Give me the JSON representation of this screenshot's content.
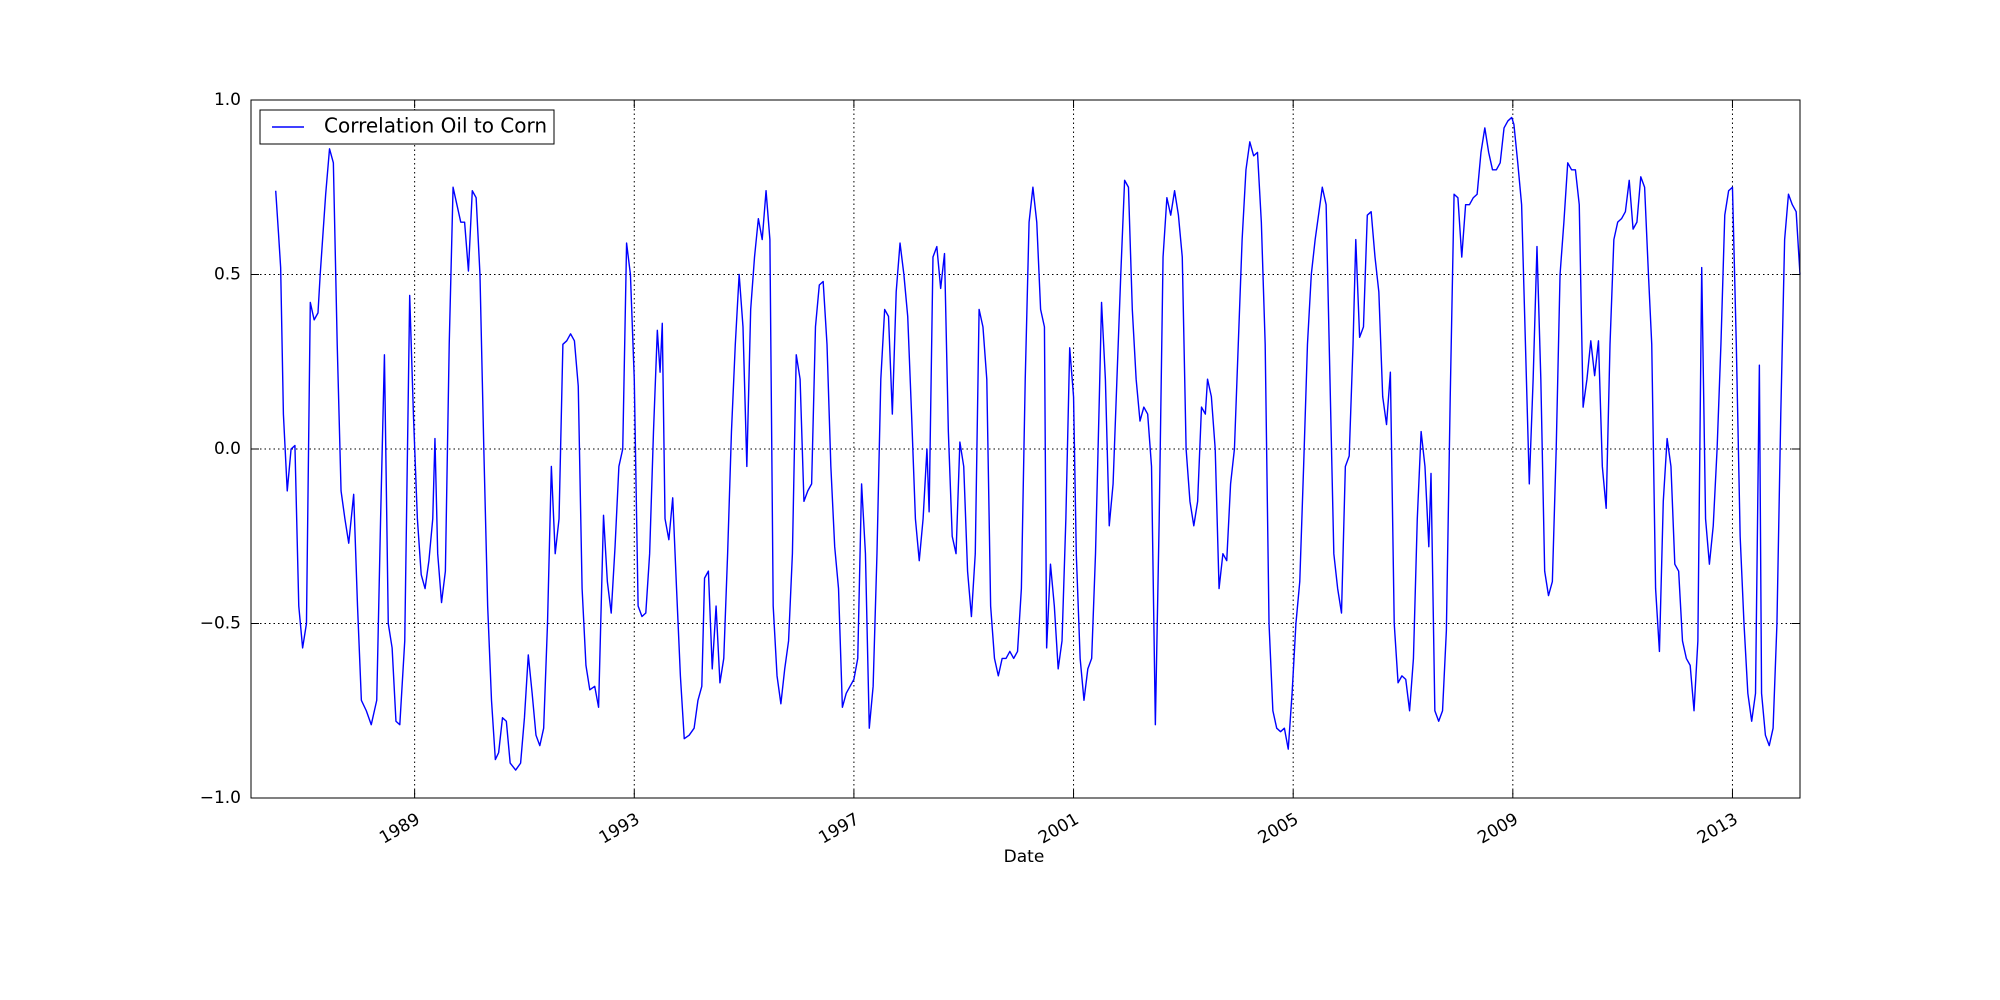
{
  "chart_data": {
    "type": "line",
    "xlabel": "Date",
    "legend": "upper left",
    "grid": true,
    "xlim": [
      1986.02,
      2014.23
    ],
    "xticks": [
      1989,
      1993,
      1997,
      2001,
      2005,
      2009,
      2013
    ],
    "ylim": [
      -1,
      1
    ],
    "yticks": [
      {
        "value": 1.0,
        "label": "1.0"
      },
      {
        "value": 0.5,
        "label": "0.5"
      },
      {
        "value": 0.0,
        "label": "0.0"
      },
      {
        "value": -0.5,
        "label": "−0.5"
      },
      {
        "value": -1.0,
        "label": "−1.0"
      }
    ],
    "x": [
      1986.47,
      1986.52,
      1986.56,
      1986.61,
      1986.68,
      1986.75,
      1986.82,
      1986.89,
      1986.96,
      1987.03,
      1987.1,
      1987.17,
      1987.24,
      1987.28,
      1987.38,
      1987.45,
      1987.52,
      1987.59,
      1987.66,
      1987.73,
      1987.8,
      1987.89,
      1987.96,
      1988.03,
      1988.12,
      1988.21,
      1988.31,
      1988.38,
      1988.45,
      1988.52,
      1988.59,
      1988.66,
      1988.73,
      1988.82,
      1988.91,
      1988.98,
      1989.05,
      1989.12,
      1989.19,
      1989.26,
      1989.33,
      1989.37,
      1989.42,
      1989.49,
      1989.56,
      1989.63,
      1989.7,
      1989.77,
      1989.84,
      1989.91,
      1989.98,
      1990.05,
      1990.12,
      1990.19,
      1990.26,
      1990.33,
      1990.4,
      1990.47,
      1990.53,
      1990.6,
      1990.67,
      1990.74,
      1990.84,
      1990.93,
      1991.0,
      1991.07,
      1991.14,
      1991.21,
      1991.28,
      1991.35,
      1991.42,
      1991.49,
      1991.56,
      1991.63,
      1991.7,
      1991.77,
      1991.84,
      1991.91,
      1991.98,
      1992.05,
      1992.12,
      1992.19,
      1992.28,
      1992.35,
      1992.44,
      1992.51,
      1992.58,
      1992.65,
      1992.72,
      1992.79,
      1992.86,
      1992.93,
      1993.0,
      1993.07,
      1993.14,
      1993.21,
      1993.28,
      1993.35,
      1993.42,
      1993.47,
      1993.51,
      1993.56,
      1993.63,
      1993.7,
      1993.77,
      1993.84,
      1993.91,
      1994.0,
      1994.09,
      1994.16,
      1994.23,
      1994.28,
      1994.35,
      1994.42,
      1994.49,
      1994.56,
      1994.63,
      1994.7,
      1994.77,
      1994.84,
      1994.91,
      1994.98,
      1995.05,
      1995.12,
      1995.19,
      1995.26,
      1995.33,
      1995.4,
      1995.47,
      1995.53,
      1995.6,
      1995.67,
      1995.74,
      1995.81,
      1995.88,
      1995.95,
      1996.02,
      1996.09,
      1996.16,
      1996.23,
      1996.3,
      1996.37,
      1996.44,
      1996.51,
      1996.58,
      1996.65,
      1996.72,
      1996.79,
      1996.86,
      1996.93,
      1997.0,
      1997.07,
      1997.14,
      1997.21,
      1997.28,
      1997.35,
      1997.42,
      1997.49,
      1997.56,
      1997.63,
      1997.7,
      1997.77,
      1997.84,
      1997.91,
      1997.98,
      1998.05,
      1998.12,
      1998.19,
      1998.26,
      1998.33,
      1998.37,
      1998.44,
      1998.51,
      1998.58,
      1998.65,
      1998.72,
      1998.79,
      1998.86,
      1998.93,
      1999.0,
      1999.07,
      1999.14,
      1999.21,
      1999.28,
      1999.35,
      1999.42,
      1999.49,
      1999.56,
      1999.63,
      1999.7,
      1999.77,
      1999.84,
      1999.91,
      1999.98,
      2000.05,
      2000.12,
      2000.19,
      2000.26,
      2000.33,
      2000.4,
      2000.47,
      2000.51,
      2000.58,
      2000.65,
      2000.72,
      2000.79,
      2000.86,
      2000.93,
      2001.0,
      2001.05,
      2001.12,
      2001.19,
      2001.26,
      2001.33,
      2001.4,
      2001.47,
      2001.51,
      2001.58,
      2001.65,
      2001.72,
      2001.79,
      2001.86,
      2001.93,
      2002.0,
      2002.07,
      2002.14,
      2002.21,
      2002.28,
      2002.35,
      2002.42,
      2002.49,
      2002.56,
      2002.63,
      2002.7,
      2002.77,
      2002.84,
      2002.91,
      2002.98,
      2003.05,
      2003.12,
      2003.19,
      2003.26,
      2003.33,
      2003.4,
      2003.44,
      2003.51,
      2003.58,
      2003.65,
      2003.72,
      2003.79,
      2003.86,
      2003.93,
      2004.0,
      2004.07,
      2004.14,
      2004.21,
      2004.28,
      2004.35,
      2004.42,
      2004.49,
      2004.56,
      2004.63,
      2004.7,
      2004.77,
      2004.84,
      2004.91,
      2004.98,
      2005.05,
      2005.12,
      2005.19,
      2005.26,
      2005.33,
      2005.4,
      2005.47,
      2005.53,
      2005.6,
      2005.67,
      2005.74,
      2005.81,
      2005.88,
      2005.95,
      2006.02,
      2006.09,
      2006.14,
      2006.21,
      2006.28,
      2006.35,
      2006.42,
      2006.49,
      2006.56,
      2006.63,
      2006.7,
      2006.77,
      2006.84,
      2006.91,
      2006.98,
      2007.05,
      2007.12,
      2007.19,
      2007.26,
      2007.33,
      2007.4,
      2007.47,
      2007.51,
      2007.58,
      2007.65,
      2007.72,
      2007.79,
      2007.86,
      2007.93,
      2008.0,
      2008.07,
      2008.14,
      2008.21,
      2008.28,
      2008.35,
      2008.42,
      2008.49,
      2008.56,
      2008.63,
      2008.7,
      2008.77,
      2008.84,
      2008.91,
      2008.98,
      2009.02,
      2009.09,
      2009.16,
      2009.23,
      2009.3,
      2009.37,
      2009.44,
      2009.51,
      2009.58,
      2009.65,
      2009.72,
      2009.79,
      2009.86,
      2009.93,
      2010.0,
      2010.07,
      2010.14,
      2010.21,
      2010.28,
      2010.35,
      2010.42,
      2010.49,
      2010.56,
      2010.63,
      2010.7,
      2010.77,
      2010.84,
      2010.91,
      2010.98,
      2011.05,
      2011.12,
      2011.19,
      2011.26,
      2011.33,
      2011.4,
      2011.47,
      2011.53,
      2011.6,
      2011.67,
      2011.74,
      2011.81,
      2011.88,
      2011.95,
      2012.02,
      2012.09,
      2012.16,
      2012.23,
      2012.3,
      2012.37,
      2012.44,
      2012.51,
      2012.58,
      2012.65,
      2012.72,
      2012.79,
      2012.86,
      2012.93,
      2013.0,
      2013.07,
      2013.14,
      2013.21,
      2013.28,
      2013.35,
      2013.42,
      2013.49,
      2013.53,
      2013.6,
      2013.67,
      2013.74,
      2013.81,
      2013.88,
      2013.95,
      2014.02,
      2014.09,
      2014.16,
      2014.23
    ],
    "series": [
      {
        "name": "Correlation Oil to Corn",
        "color": "#0000ff",
        "values": [
          0.74,
          0.62,
          0.52,
          0.1,
          -0.12,
          0.0,
          0.01,
          -0.45,
          -0.57,
          -0.5,
          0.42,
          0.37,
          0.39,
          0.5,
          0.73,
          0.86,
          0.82,
          0.3,
          -0.12,
          -0.2,
          -0.27,
          -0.13,
          -0.45,
          -0.72,
          -0.75,
          -0.79,
          -0.72,
          -0.2,
          0.27,
          -0.5,
          -0.57,
          -0.78,
          -0.79,
          -0.55,
          0.44,
          0.09,
          -0.2,
          -0.36,
          -0.4,
          -0.32,
          -0.2,
          0.03,
          -0.3,
          -0.44,
          -0.35,
          0.3,
          0.75,
          0.7,
          0.65,
          0.65,
          0.51,
          0.74,
          0.72,
          0.5,
          0.0,
          -0.45,
          -0.72,
          -0.89,
          -0.87,
          -0.77,
          -0.78,
          -0.9,
          -0.92,
          -0.9,
          -0.77,
          -0.59,
          -0.7,
          -0.82,
          -0.85,
          -0.8,
          -0.5,
          -0.05,
          -0.3,
          -0.2,
          0.3,
          0.31,
          0.33,
          0.31,
          0.18,
          -0.4,
          -0.62,
          -0.69,
          -0.68,
          -0.74,
          -0.19,
          -0.38,
          -0.47,
          -0.28,
          -0.05,
          0.0,
          0.59,
          0.5,
          0.2,
          -0.45,
          -0.48,
          -0.47,
          -0.3,
          0.05,
          0.34,
          0.22,
          0.36,
          -0.2,
          -0.26,
          -0.14,
          -0.4,
          -0.65,
          -0.83,
          -0.82,
          -0.8,
          -0.72,
          -0.68,
          -0.37,
          -0.35,
          -0.63,
          -0.45,
          -0.67,
          -0.6,
          -0.3,
          0.05,
          0.3,
          0.5,
          0.35,
          -0.05,
          0.4,
          0.55,
          0.66,
          0.6,
          0.74,
          0.6,
          -0.45,
          -0.65,
          -0.73,
          -0.63,
          -0.55,
          -0.3,
          0.27,
          0.2,
          -0.15,
          -0.12,
          -0.1,
          0.35,
          0.47,
          0.48,
          0.3,
          -0.05,
          -0.28,
          -0.4,
          -0.74,
          -0.7,
          -0.68,
          -0.66,
          -0.6,
          -0.1,
          -0.3,
          -0.8,
          -0.68,
          -0.3,
          0.2,
          0.4,
          0.38,
          0.1,
          0.45,
          0.59,
          0.5,
          0.38,
          0.1,
          -0.2,
          -0.32,
          -0.2,
          0.0,
          -0.18,
          0.55,
          0.58,
          0.46,
          0.56,
          0.05,
          -0.25,
          -0.3,
          0.02,
          -0.05,
          -0.35,
          -0.48,
          -0.3,
          0.4,
          0.35,
          0.2,
          -0.45,
          -0.6,
          -0.65,
          -0.6,
          -0.6,
          -0.58,
          -0.6,
          -0.58,
          -0.4,
          0.2,
          0.65,
          0.75,
          0.65,
          0.4,
          0.35,
          -0.57,
          -0.33,
          -0.45,
          -0.63,
          -0.55,
          -0.2,
          0.29,
          0.15,
          -0.3,
          -0.6,
          -0.72,
          -0.63,
          -0.6,
          -0.3,
          0.15,
          0.42,
          0.2,
          -0.22,
          -0.1,
          0.2,
          0.5,
          0.77,
          0.75,
          0.4,
          0.2,
          0.08,
          0.12,
          0.1,
          -0.05,
          -0.79,
          -0.2,
          0.55,
          0.72,
          0.67,
          0.74,
          0.67,
          0.55,
          0.0,
          -0.15,
          -0.22,
          -0.15,
          0.12,
          0.1,
          0.2,
          0.15,
          0.0,
          -0.4,
          -0.3,
          -0.32,
          -0.1,
          0.0,
          0.3,
          0.6,
          0.8,
          0.88,
          0.84,
          0.85,
          0.65,
          0.3,
          -0.5,
          -0.75,
          -0.8,
          -0.81,
          -0.8,
          -0.86,
          -0.7,
          -0.5,
          -0.38,
          -0.05,
          0.3,
          0.5,
          0.6,
          0.68,
          0.75,
          0.7,
          0.2,
          -0.3,
          -0.4,
          -0.47,
          -0.05,
          -0.02,
          0.3,
          0.6,
          0.32,
          0.35,
          0.67,
          0.68,
          0.55,
          0.45,
          0.15,
          0.07,
          0.22,
          -0.5,
          -0.67,
          -0.65,
          -0.66,
          -0.75,
          -0.6,
          -0.2,
          0.05,
          -0.05,
          -0.28,
          -0.07,
          -0.75,
          -0.78,
          -0.75,
          -0.52,
          0.15,
          0.73,
          0.72,
          0.55,
          0.7,
          0.7,
          0.72,
          0.73,
          0.85,
          0.92,
          0.85,
          0.8,
          0.8,
          0.82,
          0.92,
          0.94,
          0.95,
          0.93,
          0.82,
          0.7,
          0.3,
          -0.1,
          0.2,
          0.58,
          0.2,
          -0.35,
          -0.42,
          -0.38,
          0.0,
          0.5,
          0.65,
          0.82,
          0.8,
          0.8,
          0.7,
          0.12,
          0.2,
          0.31,
          0.21,
          0.31,
          -0.05,
          -0.17,
          0.3,
          0.6,
          0.65,
          0.66,
          0.68,
          0.77,
          0.63,
          0.65,
          0.78,
          0.75,
          0.5,
          0.3,
          -0.4,
          -0.58,
          -0.15,
          0.03,
          -0.05,
          -0.33,
          -0.35,
          -0.55,
          -0.6,
          -0.62,
          -0.75,
          -0.55,
          0.52,
          -0.2,
          -0.33,
          -0.22,
          0.0,
          0.3,
          0.67,
          0.74,
          0.75,
          0.3,
          -0.25,
          -0.5,
          -0.7,
          -0.78,
          -0.7,
          0.24,
          -0.7,
          -0.82,
          -0.85,
          -0.8,
          -0.5,
          0.1,
          0.6,
          0.73,
          0.7,
          0.68,
          0.5
        ]
      }
    ]
  }
}
